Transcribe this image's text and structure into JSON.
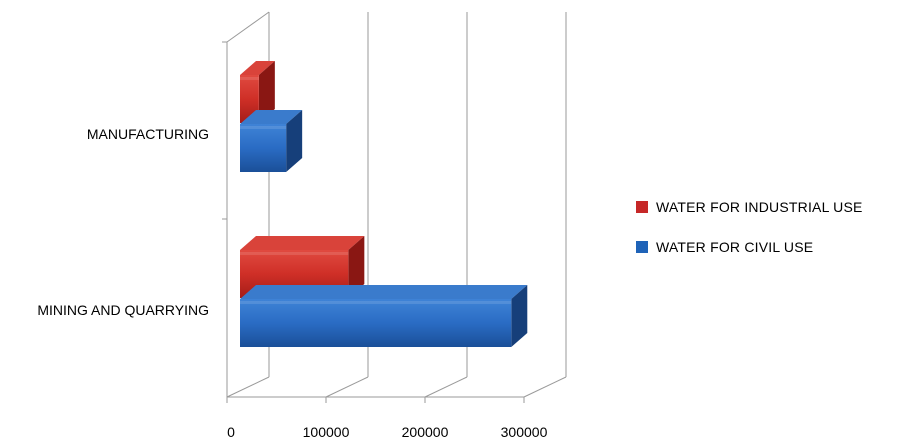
{
  "chart_data": {
    "type": "bar",
    "orientation": "horizontal",
    "style": "3d",
    "categories": [
      "MANUFACTURING",
      "MINING AND QUARRYING"
    ],
    "series": [
      {
        "name": "WATER FOR INDUSTRIAL USE",
        "color": "#c62828",
        "values": [
          20000,
          115000
        ]
      },
      {
        "name": "WATER FOR CIVIL USE",
        "color": "#1f63b8",
        "values": [
          49000,
          288000
        ]
      }
    ],
    "xticks": [
      0,
      100000,
      200000,
      300000
    ],
    "xtick_labels": [
      "0",
      "100000",
      "200000",
      "300000"
    ],
    "xlim": [
      0,
      300000
    ],
    "grid": true,
    "legend_position": "right"
  }
}
